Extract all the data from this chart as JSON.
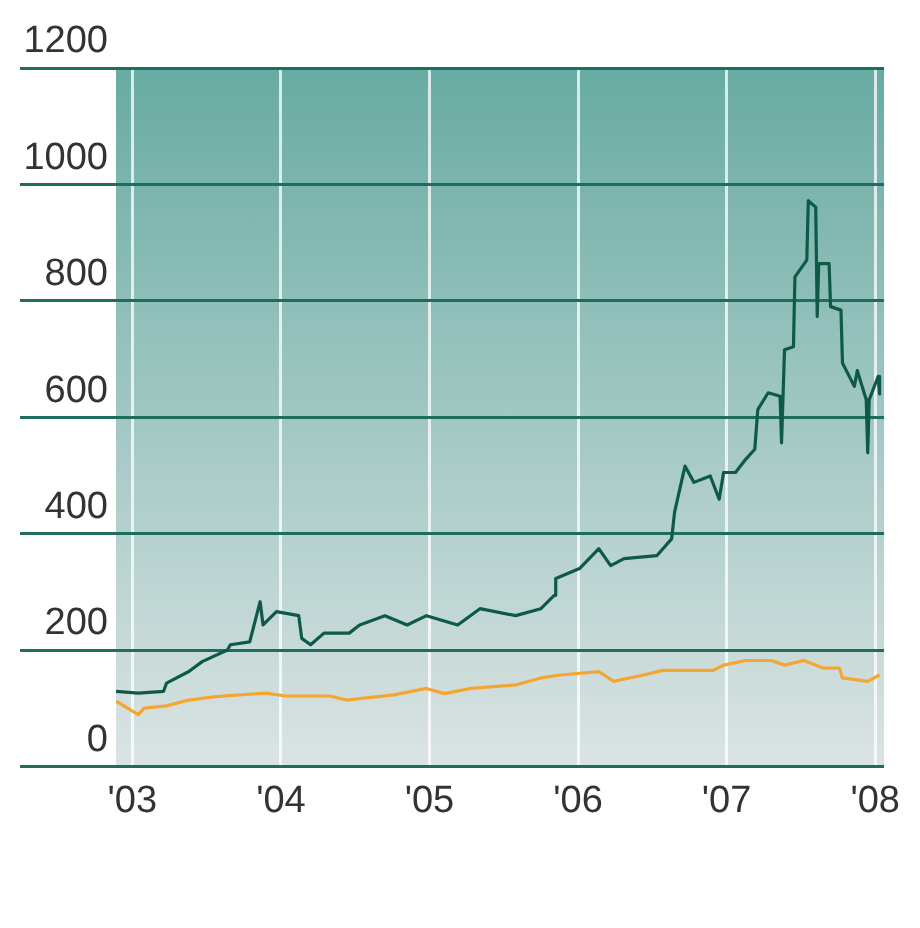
{
  "chart_data": {
    "type": "line",
    "xlim": [
      2002.89,
      2008.06
    ],
    "xticks": [
      {
        "value": 2003,
        "label": "'03"
      },
      {
        "value": 2004,
        "label": "'04"
      },
      {
        "value": 2005,
        "label": "'05"
      },
      {
        "value": 2006,
        "label": "'06"
      },
      {
        "value": 2007,
        "label": "'07"
      },
      {
        "value": 2008,
        "label": "'08"
      }
    ],
    "ylim": [
      0,
      1200
    ],
    "yticks": [
      0,
      200,
      400,
      600,
      800,
      1000,
      1200
    ],
    "grid": true,
    "marker": "none",
    "line_style": "solid",
    "series": [
      {
        "color": "#f5a631",
        "x": [
          2002.89,
          2003.04,
          2003.08,
          2003.23,
          2003.38,
          2003.56,
          2003.9,
          2004.03,
          2004.33,
          2004.44,
          2004.76,
          2004.98,
          2005.1,
          2005.28,
          2005.58,
          2005.75,
          2005.88,
          2006.14,
          2006.24,
          2006.44,
          2006.57,
          2006.91,
          2006.98,
          2007.13,
          2007.3,
          2007.39,
          2007.52,
          2007.65,
          2007.76,
          2007.78,
          2007.95,
          2008.03
        ],
        "values": [
          112,
          89,
          100,
          104,
          114,
          120,
          126,
          121,
          121,
          114,
          123,
          134,
          125,
          134,
          140,
          152,
          157,
          163,
          146,
          157,
          165,
          165,
          174,
          182,
          182,
          174,
          182,
          169,
          169,
          152,
          146,
          157
        ]
      },
      {
        "color": "#0d5a49",
        "x": [
          2002.89,
          2003.04,
          2003.21,
          2003.23,
          2003.38,
          2003.47,
          2003.64,
          2003.66,
          2003.79,
          2003.86,
          2003.88,
          2003.97,
          2004.12,
          2004.14,
          2004.2,
          2004.29,
          2004.46,
          2004.53,
          2004.7,
          2004.85,
          2004.98,
          2005.19,
          2005.34,
          2005.58,
          2005.75,
          2005.84,
          2005.85,
          2006.01,
          2006.14,
          2006.22,
          2006.31,
          2006.53,
          2006.63,
          2006.65,
          2006.72,
          2006.78,
          2006.89,
          2006.95,
          2006.98,
          2007.06,
          2007.13,
          2007.19,
          2007.21,
          2007.28,
          2007.36,
          2007.37,
          2007.39,
          2007.45,
          2007.46,
          2007.54,
          2007.55,
          2007.6,
          2007.61,
          2007.62,
          2007.69,
          2007.7,
          2007.77,
          2007.78,
          2007.86,
          2007.88,
          2007.94,
          2007.95,
          2007.96,
          2008.02,
          2008.03
        ],
        "values": [
          129,
          126,
          129,
          143,
          163,
          180,
          200,
          209,
          214,
          283,
          243,
          266,
          259,
          220,
          209,
          229,
          229,
          243,
          259,
          243,
          259,
          243,
          271,
          259,
          271,
          294,
          323,
          340,
          374,
          345,
          357,
          362,
          391,
          437,
          516,
          488,
          499,
          459,
          505,
          505,
          528,
          545,
          613,
          642,
          636,
          556,
          716,
          721,
          841,
          870,
          972,
          961,
          773,
          864,
          864,
          790,
          784,
          693,
          653,
          680,
          630,
          539,
          630,
          670,
          640
        ]
      }
    ]
  }
}
